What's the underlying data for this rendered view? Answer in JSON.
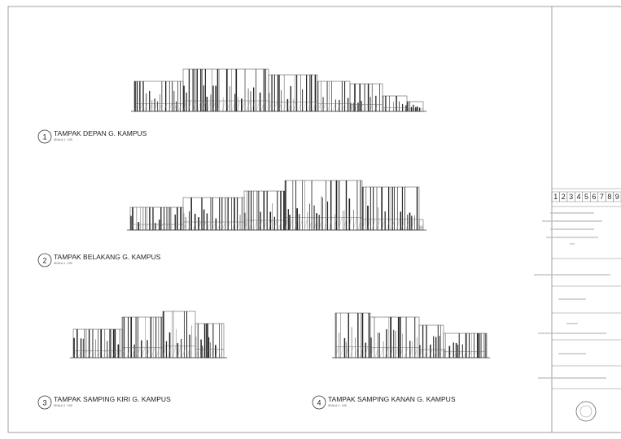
{
  "views": [
    {
      "number": "1",
      "title": "TAMPAK DEPAN G. KAMPUS",
      "scale": "SKALA 1 : 100"
    },
    {
      "number": "2",
      "title": "TAMPAK BELAKANG G. KAMPUS",
      "scale": "SKALA 1 : 100"
    },
    {
      "number": "3",
      "title": "TAMPAK SAMPING KIRI G. KAMPUS",
      "scale": "SKALA 1 : 100"
    },
    {
      "number": "4",
      "title": "TAMPAK SAMPING KANAN G. KAMPUS",
      "scale": "SKALA 1 : 100"
    }
  ],
  "title_block": {
    "sheet_numbers": [
      "1",
      "2",
      "3",
      "4",
      "5",
      "6",
      "7",
      "8",
      "9"
    ]
  }
}
